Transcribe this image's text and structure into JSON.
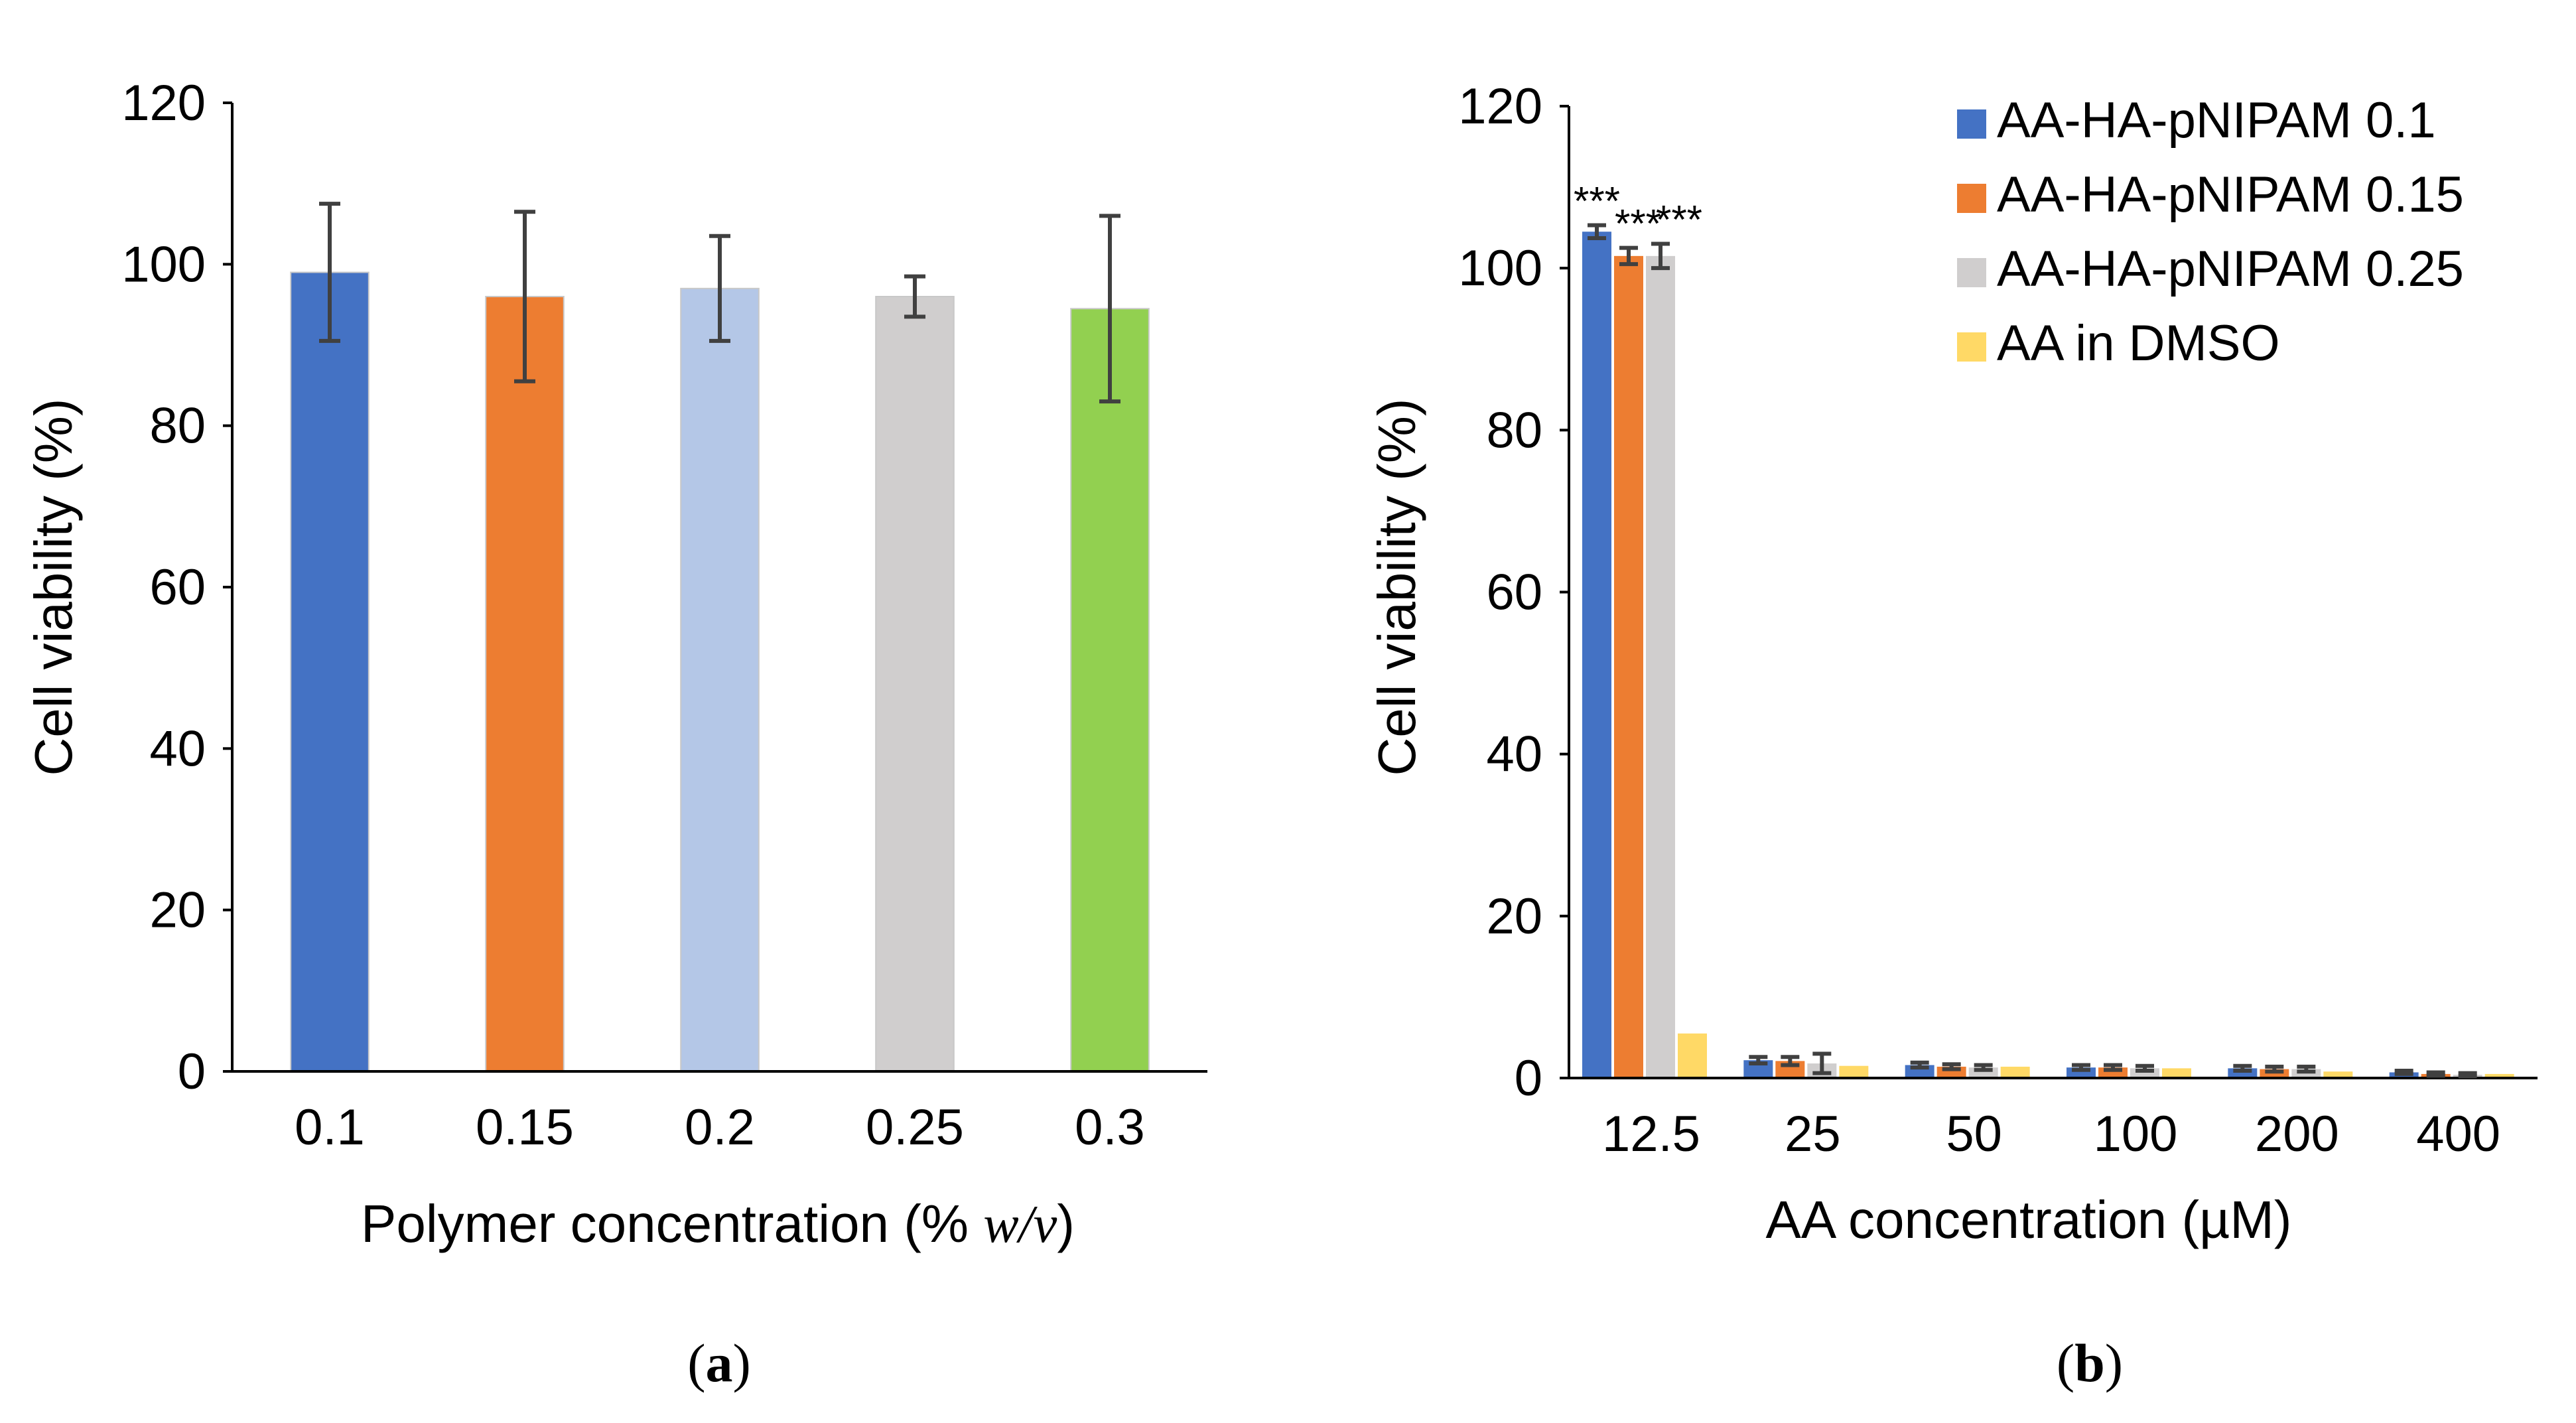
{
  "chart_data": [
    {
      "type": "bar",
      "panel_label": "a",
      "categories": [
        "0.1",
        "0.15",
        "0.2",
        "0.25",
        "0.3"
      ],
      "values": [
        99,
        96,
        97,
        96,
        94.5
      ],
      "errors": [
        8.5,
        10.5,
        6.5,
        2.5,
        11.5
      ],
      "colors": [
        "#4472C4",
        "#ED7D31",
        "#B4C7E7",
        "#D0CECE",
        "#92D050"
      ],
      "xlabel": {
        "prefix": "Polymer concentration (% ",
        "unit_italic": "w/v",
        "suffix": ")"
      },
      "ylabel": "Cell viability (%)",
      "ylim": [
        0,
        120
      ],
      "yticks": [
        "0",
        "20",
        "40",
        "60",
        "80",
        "100",
        "120"
      ],
      "grid": false
    },
    {
      "type": "bar",
      "panel_label": "b",
      "categories": [
        "12.5",
        "25",
        "50",
        "100",
        "200",
        "400"
      ],
      "series": [
        {
          "name": "AA-HA-pNIPAM 0.1",
          "color": "#4472C4",
          "values": [
            104.5,
            2.2,
            1.6,
            1.3,
            1.2,
            0.7
          ],
          "errors": [
            0.8,
            0.4,
            0.3,
            0.3,
            0.3,
            0.2
          ]
        },
        {
          "name": "AA-HA-pNIPAM 0.15",
          "color": "#ED7D31",
          "values": [
            101.5,
            2.1,
            1.4,
            1.3,
            1.1,
            0.5
          ],
          "errors": [
            1.0,
            0.5,
            0.3,
            0.3,
            0.3,
            0.2
          ]
        },
        {
          "name": "AA-HA-pNIPAM 0.25",
          "color": "#D0CECE",
          "values": [
            101.5,
            1.8,
            1.3,
            1.2,
            1.1,
            0.4
          ],
          "errors": [
            1.5,
            1.2,
            0.3,
            0.3,
            0.3,
            0.2
          ]
        },
        {
          "name": "AA in DMSO",
          "color": "#FFD966",
          "values": [
            5.5,
            1.5,
            1.4,
            1.2,
            0.8,
            0.5
          ],
          "errors": [
            0,
            0,
            0,
            0,
            0,
            0
          ]
        }
      ],
      "annotations": [
        "***",
        "***",
        "***"
      ],
      "xlabel": "AA concentration (µM)",
      "ylabel": "Cell viability (%)",
      "ylim": [
        0,
        120
      ],
      "yticks": [
        "0",
        "20",
        "40",
        "60",
        "80",
        "100",
        "120"
      ],
      "legend": "top-right",
      "grid": false
    }
  ]
}
